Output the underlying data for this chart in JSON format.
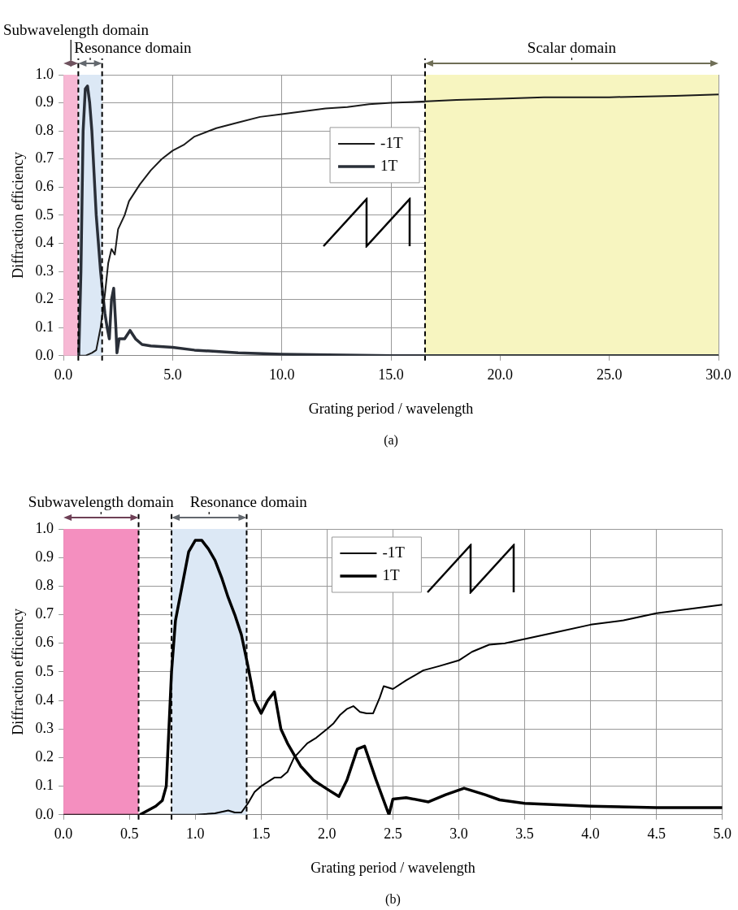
{
  "chart_data": [
    {
      "type": "line",
      "xlabel": "Grating period / wavelength",
      "ylabel": "Diffraction efficiency",
      "annotations": [
        "(a)"
      ],
      "xlim": [
        0,
        30
      ],
      "xticks": [
        {
          "value": 0,
          "label": "0.0"
        },
        {
          "value": 5,
          "label": "5.0"
        },
        {
          "value": 10,
          "label": "10.0"
        },
        {
          "value": 15,
          "label": "15.0"
        },
        {
          "value": 20,
          "label": "20.0"
        },
        {
          "value": 25,
          "label": "25.0"
        },
        {
          "value": 30,
          "label": "30.0"
        }
      ],
      "ylim": [
        0,
        1
      ],
      "yticks": [
        {
          "value": 0,
          "label": "0.0"
        },
        {
          "value": 0.1,
          "label": "0.1"
        },
        {
          "value": 0.2,
          "label": "0.2"
        },
        {
          "value": 0.3,
          "label": "0.3"
        },
        {
          "value": 0.4,
          "label": "0.4"
        },
        {
          "value": 0.5,
          "label": "0.5"
        },
        {
          "value": 0.6,
          "label": "0.6"
        },
        {
          "value": 0.7,
          "label": "0.7"
        },
        {
          "value": 0.8,
          "label": "0.8"
        },
        {
          "value": 0.9,
          "label": "0.9"
        },
        {
          "value": 1,
          "label": "1.0"
        }
      ],
      "grid": true,
      "legend": "center",
      "marker": "none",
      "line_style": "solid",
      "bands": [
        {
          "axis": "x",
          "from": 0,
          "to": 0.68,
          "label": "Subwavelength domain",
          "color": "#f7b8d4"
        },
        {
          "axis": "x",
          "from": 0.68,
          "to": 1.77,
          "label": "Resonance domain",
          "color": "#dce8f5"
        },
        {
          "axis": "x",
          "from": 16.56,
          "to": 30,
          "label": "Scalar domain",
          "color": "#f7f5c0"
        }
      ],
      "ref_lines": [
        {
          "axis": "x",
          "value": 0.68,
          "color": "#000000",
          "line_style": "dashed"
        },
        {
          "axis": "x",
          "value": 1.77,
          "color": "#000000",
          "line_style": "dashed"
        },
        {
          "axis": "x",
          "value": 16.56,
          "color": "#000000",
          "line_style": "dashed"
        }
      ],
      "series": [
        {
          "name": "-1T",
          "color": "#1a1a1a",
          "x": [
            0.68,
            1.0,
            1.3,
            1.5,
            1.7,
            1.9,
            2.05,
            2.2,
            2.35,
            2.5,
            2.8,
            3.0,
            3.5,
            4.0,
            4.5,
            5.0,
            5.5,
            6.0,
            7.0,
            8.0,
            9.0,
            10.0,
            11.0,
            12.0,
            13.0,
            14.0,
            15.0,
            16.6,
            18,
            20,
            22,
            25,
            28,
            30
          ],
          "values": [
            0,
            0,
            0.01,
            0.02,
            0.1,
            0.22,
            0.33,
            0.38,
            0.36,
            0.45,
            0.5,
            0.55,
            0.61,
            0.66,
            0.7,
            0.73,
            0.75,
            0.78,
            0.81,
            0.83,
            0.85,
            0.86,
            0.87,
            0.88,
            0.885,
            0.895,
            0.9,
            0.905,
            0.91,
            0.915,
            0.92,
            0.92,
            0.925,
            0.93
          ]
        },
        {
          "name": "1T",
          "color": "#2a2f38",
          "x": [
            0.7,
            0.8,
            0.9,
            1.0,
            1.1,
            1.2,
            1.3,
            1.4,
            1.5,
            1.6,
            1.7,
            1.8,
            1.9,
            2.0,
            2.1,
            2.2,
            2.3,
            2.4,
            2.45,
            2.55,
            2.8,
            3.05,
            3.3,
            3.6,
            4,
            5,
            6,
            7,
            8,
            10,
            15,
            20,
            30
          ],
          "values": [
            0,
            0.3,
            0.8,
            0.95,
            0.96,
            0.9,
            0.8,
            0.65,
            0.5,
            0.4,
            0.3,
            0.22,
            0.15,
            0.1,
            0.06,
            0.2,
            0.24,
            0.1,
            0.01,
            0.06,
            0.06,
            0.09,
            0.06,
            0.04,
            0.035,
            0.03,
            0.02,
            0.015,
            0.01,
            0.005,
            0,
            0,
            0
          ]
        }
      ]
    },
    {
      "type": "line",
      "xlabel": "Grating period / wavelength",
      "ylabel": "Diffraction efficiency",
      "annotations": [
        "(b)"
      ],
      "xlim": [
        0,
        5
      ],
      "xticks": [
        {
          "value": 0,
          "label": "0.0"
        },
        {
          "value": 0.5,
          "label": "0.5"
        },
        {
          "value": 1,
          "label": "1.0"
        },
        {
          "value": 1.5,
          "label": "1.5"
        },
        {
          "value": 2,
          "label": "2.0"
        },
        {
          "value": 2.5,
          "label": "2.5"
        },
        {
          "value": 3,
          "label": "3.0"
        },
        {
          "value": 3.5,
          "label": "3.5"
        },
        {
          "value": 4,
          "label": "4.0"
        },
        {
          "value": 4.5,
          "label": "4.5"
        },
        {
          "value": 5,
          "label": "5.0"
        }
      ],
      "ylim": [
        0,
        1
      ],
      "yticks": [
        {
          "value": 0,
          "label": "0.0"
        },
        {
          "value": 0.1,
          "label": "0.1"
        },
        {
          "value": 0.2,
          "label": "0.2"
        },
        {
          "value": 0.3,
          "label": "0.3"
        },
        {
          "value": 0.4,
          "label": "0.4"
        },
        {
          "value": 0.5,
          "label": "0.5"
        },
        {
          "value": 0.6,
          "label": "0.6"
        },
        {
          "value": 0.7,
          "label": "0.7"
        },
        {
          "value": 0.8,
          "label": "0.8"
        },
        {
          "value": 0.9,
          "label": "0.9"
        },
        {
          "value": 1,
          "label": "1.0"
        }
      ],
      "grid": true,
      "legend": "top",
      "marker": "none",
      "line_style": "solid",
      "bands": [
        {
          "axis": "x",
          "from": 0,
          "to": 0.57,
          "label": "Subwavelength domain",
          "color": "#f48fbf"
        },
        {
          "axis": "x",
          "from": 0.82,
          "to": 1.39,
          "label": "Resonance domain",
          "color": "#dce8f5"
        }
      ],
      "ref_lines": [
        {
          "axis": "x",
          "value": 0.57,
          "color": "#000000",
          "line_style": "dashed"
        },
        {
          "axis": "x",
          "value": 0.82,
          "color": "#000000",
          "line_style": "dashed"
        },
        {
          "axis": "x",
          "value": 1.39,
          "color": "#000000",
          "line_style": "dashed"
        }
      ],
      "series": [
        {
          "name": "-1T",
          "color": "#000000",
          "x": [
            0,
            1.0,
            1.15,
            1.2,
            1.25,
            1.3,
            1.35,
            1.4,
            1.45,
            1.5,
            1.6,
            1.65,
            1.7,
            1.75,
            1.85,
            1.92,
            2.0,
            2.05,
            2.1,
            2.15,
            2.2,
            2.25,
            2.3,
            2.35,
            2.4,
            2.43,
            2.5,
            2.6,
            2.73,
            2.85,
            3.0,
            3.1,
            3.23,
            3.35,
            3.5,
            3.75,
            4.0,
            4.25,
            4.5,
            4.75,
            5.0
          ],
          "values": [
            0,
            0,
            0.005,
            0.01,
            0.015,
            0.008,
            0.008,
            0.04,
            0.08,
            0.1,
            0.13,
            0.13,
            0.15,
            0.2,
            0.25,
            0.27,
            0.3,
            0.32,
            0.35,
            0.37,
            0.38,
            0.36,
            0.355,
            0.355,
            0.41,
            0.45,
            0.44,
            0.47,
            0.505,
            0.52,
            0.54,
            0.57,
            0.595,
            0.6,
            0.615,
            0.64,
            0.665,
            0.68,
            0.705,
            0.72,
            0.735
          ]
        },
        {
          "name": "1T",
          "color": "#000000",
          "x": [
            0.58,
            0.62,
            0.7,
            0.75,
            0.78,
            0.8,
            0.82,
            0.85,
            0.9,
            0.95,
            1.0,
            1.05,
            1.1,
            1.15,
            1.2,
            1.25,
            1.3,
            1.35,
            1.4,
            1.45,
            1.5,
            1.55,
            1.6,
            1.65,
            1.7,
            1.8,
            1.9,
            2.0,
            2.09,
            2.15,
            2.23,
            2.285,
            2.37,
            2.47,
            2.5,
            2.6,
            2.77,
            2.9,
            3.04,
            3.2,
            3.31,
            3.5,
            4.0,
            4.5,
            5.0
          ],
          "values": [
            0,
            0.01,
            0.03,
            0.05,
            0.1,
            0.3,
            0.5,
            0.68,
            0.8,
            0.92,
            0.96,
            0.96,
            0.93,
            0.89,
            0.83,
            0.76,
            0.7,
            0.63,
            0.52,
            0.4,
            0.355,
            0.4,
            0.43,
            0.3,
            0.25,
            0.17,
            0.12,
            0.09,
            0.064,
            0.12,
            0.23,
            0.24,
            0.125,
            0,
            0.055,
            0.06,
            0.045,
            0.07,
            0.093,
            0.07,
            0.052,
            0.04,
            0.03,
            0.025,
            0.025
          ]
        }
      ]
    }
  ]
}
